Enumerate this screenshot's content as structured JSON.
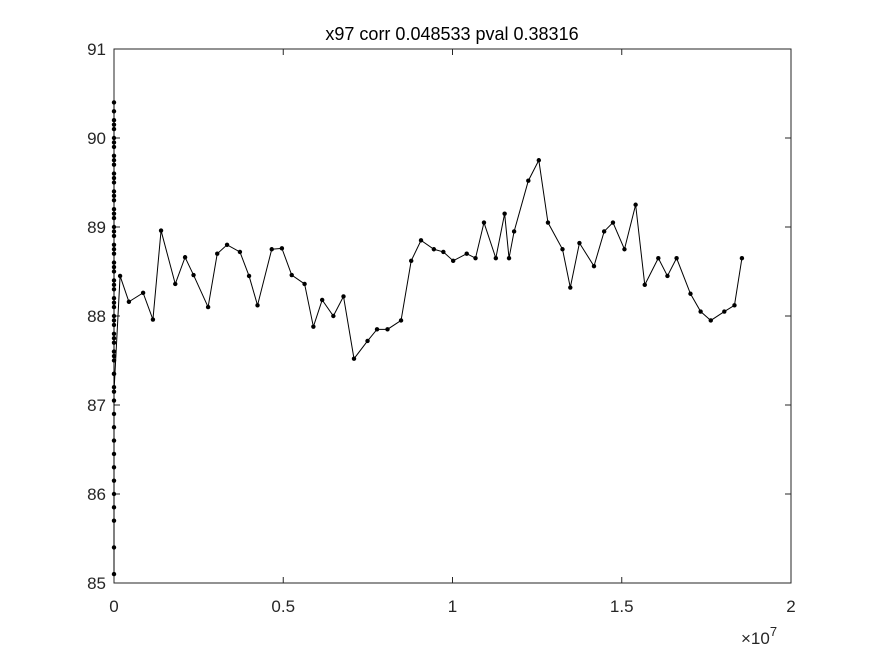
{
  "chart_data": {
    "type": "line",
    "title": "x97 corr 0.048533 pval 0.38316",
    "xlabel": "",
    "ylabel": "",
    "xlim": [
      0,
      20000000
    ],
    "ylim": [
      85,
      91
    ],
    "x_exponent_label": "×10",
    "x_exponent_power": "7",
    "x_ticks": [
      {
        "value": 0,
        "label": "0"
      },
      {
        "value": 5000000,
        "label": "0.5"
      },
      {
        "value": 10000000,
        "label": "1"
      },
      {
        "value": 15000000,
        "label": "1.5"
      },
      {
        "value": 20000000,
        "label": "2"
      }
    ],
    "y_ticks": [
      {
        "value": 85,
        "label": "85"
      },
      {
        "value": 86,
        "label": "86"
      },
      {
        "value": 87,
        "label": "87"
      },
      {
        "value": 88,
        "label": "88"
      },
      {
        "value": 89,
        "label": "89"
      },
      {
        "value": 90,
        "label": "90"
      },
      {
        "value": 91,
        "label": "91"
      }
    ],
    "grid": false,
    "legend": "none",
    "line_color": "#000000",
    "marker": "dot",
    "series": [
      {
        "x": [
          0,
          0,
          0,
          0,
          0,
          0,
          0,
          0,
          0,
          0,
          0,
          0,
          0,
          0,
          0,
          0,
          0,
          0,
          0,
          0,
          0,
          0,
          0,
          0,
          0,
          0,
          0,
          0,
          0,
          0,
          0,
          0,
          0,
          0,
          0,
          0,
          0,
          0,
          0,
          0,
          0,
          0,
          0,
          0,
          0,
          0,
          0,
          0,
          0,
          0,
          0,
          0,
          0,
          0,
          0,
          0,
          0,
          0,
          0,
          0,
          180000,
          440000,
          860000,
          1150000,
          1390000,
          1810000,
          2100000,
          2350000,
          2780000,
          3050000,
          3340000,
          3720000,
          3990000,
          4240000,
          4660000,
          4960000,
          5250000,
          5630000,
          5890000,
          6150000,
          6480000,
          6780000,
          7090000,
          7490000,
          7770000,
          8080000,
          8480000,
          8780000,
          9070000,
          9450000,
          9730000,
          10020000,
          10420000,
          10680000,
          10930000,
          11280000,
          11540000,
          11670000,
          11820000,
          12240000,
          12550000,
          12820000,
          13250000,
          13480000,
          13750000,
          14180000,
          14480000,
          14740000,
          15080000,
          15410000,
          15680000,
          16080000,
          16350000,
          16620000,
          17030000,
          17330000,
          17630000,
          18030000,
          18330000,
          18550000
        ],
        "y": [
          85.1,
          85.4,
          85.7,
          85.85,
          86.0,
          86.15,
          86.3,
          86.45,
          86.6,
          86.75,
          86.9,
          87.05,
          87.2,
          87.35,
          87.5,
          87.6,
          87.7,
          87.8,
          87.9,
          88.0,
          88.1,
          88.2,
          88.3,
          88.4,
          88.5,
          88.6,
          88.7,
          88.8,
          88.9,
          89.0,
          89.1,
          89.2,
          89.3,
          89.4,
          89.5,
          89.6,
          89.7,
          89.8,
          89.9,
          90.0,
          90.1,
          90.2,
          90.3,
          90.4,
          90.15,
          89.95,
          89.75,
          89.55,
          89.35,
          89.15,
          88.95,
          88.75,
          88.55,
          88.35,
          88.15,
          87.95,
          87.75,
          87.55,
          87.35,
          87.15,
          88.45,
          88.16,
          88.26,
          87.96,
          88.96,
          88.36,
          88.66,
          88.46,
          88.1,
          88.7,
          88.8,
          88.72,
          88.45,
          88.12,
          88.75,
          88.76,
          88.46,
          88.36,
          87.88,
          88.18,
          88.0,
          88.22,
          87.52,
          87.72,
          87.85,
          87.85,
          87.95,
          88.62,
          88.85,
          88.75,
          88.72,
          88.62,
          88.7,
          88.65,
          89.05,
          88.65,
          89.15,
          88.65,
          88.95,
          89.52,
          89.75,
          89.05,
          88.75,
          88.32,
          88.82,
          88.56,
          88.95,
          89.05,
          88.75,
          89.25,
          88.35,
          88.65,
          88.45,
          88.65,
          88.25,
          88.05,
          87.95,
          88.05,
          88.12,
          88.65
        ]
      }
    ]
  }
}
